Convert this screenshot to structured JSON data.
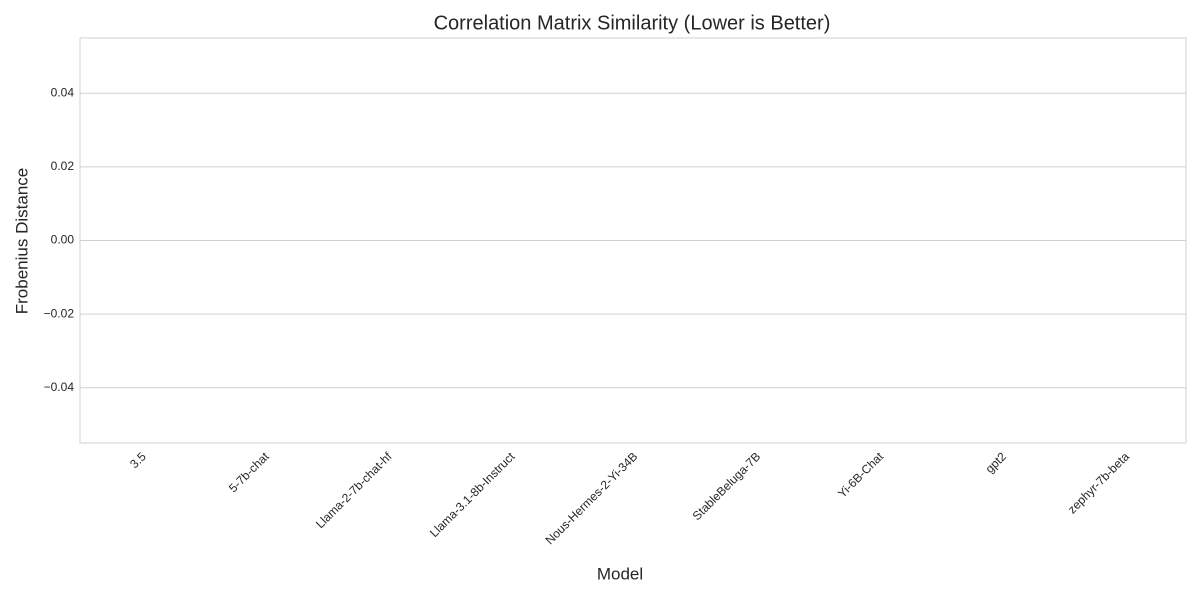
{
  "chart_data": {
    "type": "bar",
    "title": "Correlation Matrix Similarity (Lower is Better)",
    "x_label": "Model",
    "y_label": "Frobenius Distance",
    "categories": [
      "3.5",
      "5-7b-chat",
      "Llama-2-7b-chat-hf",
      "Llama-3.1-8b-Instruct",
      "Nous-Hermes-2-Yi-34B",
      "StableBeluga-7B",
      "Yi-6B-Chat",
      "gpt2",
      "zephyr-7b-beta"
    ],
    "values": [
      0,
      0,
      0,
      0,
      0,
      0,
      0,
      0,
      0
    ],
    "ylim": [
      -0.055,
      0.055
    ],
    "yticks": [
      {
        "value": -0.04,
        "label": "−0.04"
      },
      {
        "value": -0.02,
        "label": "−0.02"
      },
      {
        "value": 0,
        "label": "0.00"
      },
      0.02,
      0.04
    ],
    "grid": true
  }
}
